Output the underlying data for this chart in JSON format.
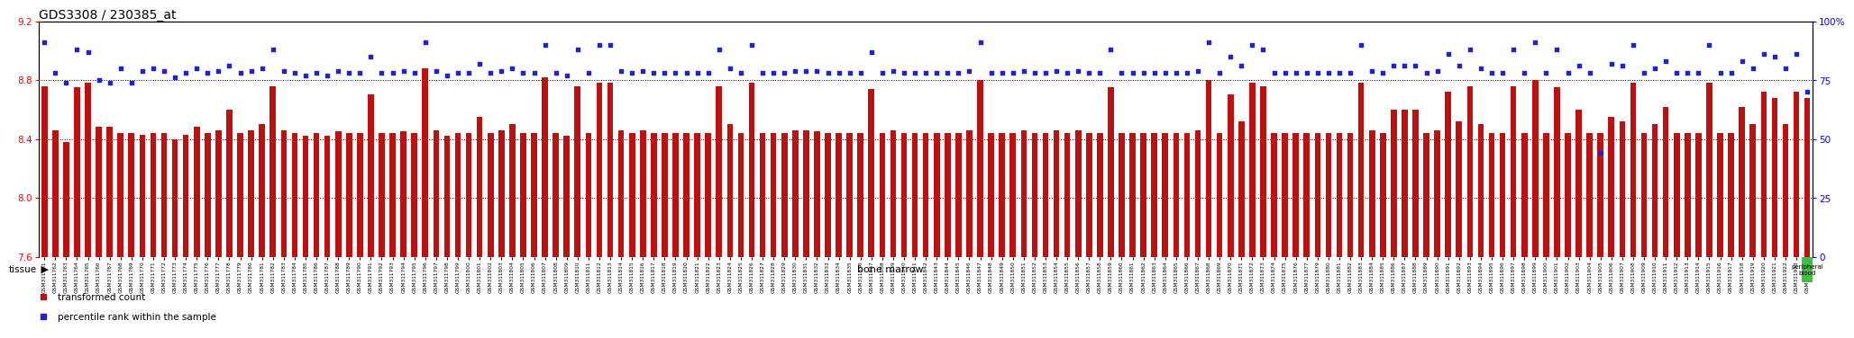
{
  "title": "GDS3308 / 230385_at",
  "ylim_left": [
    7.6,
    9.2
  ],
  "ylim_right": [
    0,
    100
  ],
  "yticks_left": [
    7.6,
    8.0,
    8.4,
    8.8,
    9.2
  ],
  "yticks_right": [
    0,
    25,
    50,
    75,
    100
  ],
  "bar_color": "#bb1111",
  "dot_color": "#2222cc",
  "bar_baseline": 7.6,
  "tissue_color_bone": "#c8f0c8",
  "tissue_color_blood": "#44bb44",
  "tissue_label": "tissue",
  "bone_label": "bone marrow",
  "blood_label": "peripheral\nblood",
  "legend_bar_label": "transformed count",
  "legend_dot_label": "percentile rank within the sample",
  "samples": [
    "GSM311761",
    "GSM311762",
    "GSM311763",
    "GSM311764",
    "GSM311765",
    "GSM311766",
    "GSM311767",
    "GSM311768",
    "GSM311769",
    "GSM311770",
    "GSM311771",
    "GSM311772",
    "GSM311773",
    "GSM311774",
    "GSM311775",
    "GSM311776",
    "GSM311777",
    "GSM311778",
    "GSM311779",
    "GSM311780",
    "GSM311781",
    "GSM311782",
    "GSM311783",
    "GSM311784",
    "GSM311785",
    "GSM311786",
    "GSM311787",
    "GSM311788",
    "GSM311789",
    "GSM311790",
    "GSM311791",
    "GSM311792",
    "GSM311793",
    "GSM311794",
    "GSM311795",
    "GSM311796",
    "GSM311797",
    "GSM311798",
    "GSM311799",
    "GSM311800",
    "GSM311801",
    "GSM311802",
    "GSM311803",
    "GSM311804",
    "GSM311805",
    "GSM311806",
    "GSM311807",
    "GSM311808",
    "GSM311809",
    "GSM311810",
    "GSM311811",
    "GSM311812",
    "GSM311813",
    "GSM311814",
    "GSM311815",
    "GSM311816",
    "GSM311817",
    "GSM311818",
    "GSM311819",
    "GSM311820",
    "GSM311821",
    "GSM311822",
    "GSM311823",
    "GSM311824",
    "GSM311825",
    "GSM311826",
    "GSM311827",
    "GSM311828",
    "GSM311829",
    "GSM311830",
    "GSM311831",
    "GSM311832",
    "GSM311833",
    "GSM311834",
    "GSM311835",
    "GSM311836",
    "GSM311837",
    "GSM311838",
    "GSM311839",
    "GSM311840",
    "GSM311841",
    "GSM311842",
    "GSM311843",
    "GSM311844",
    "GSM311845",
    "GSM311846",
    "GSM311847",
    "GSM311848",
    "GSM311849",
    "GSM311850",
    "GSM311851",
    "GSM311852",
    "GSM311853",
    "GSM311854",
    "GSM311855",
    "GSM311856",
    "GSM311857",
    "GSM311858",
    "GSM311859",
    "GSM311860",
    "GSM311861",
    "GSM311862",
    "GSM311863",
    "GSM311864",
    "GSM311865",
    "GSM311866",
    "GSM311867",
    "GSM311868",
    "GSM311869",
    "GSM311870",
    "GSM311871",
    "GSM311872",
    "GSM311873",
    "GSM311874",
    "GSM311875",
    "GSM311876",
    "GSM311877",
    "GSM311879",
    "GSM311880",
    "GSM311881",
    "GSM311882",
    "GSM311883",
    "GSM311884",
    "GSM311885",
    "GSM311886",
    "GSM311887",
    "GSM311888",
    "GSM311889",
    "GSM311890",
    "GSM311891",
    "GSM311892",
    "GSM311893",
    "GSM311894",
    "GSM311895",
    "GSM311896",
    "GSM311897",
    "GSM311898",
    "GSM311899",
    "GSM311900",
    "GSM311901",
    "GSM311902",
    "GSM311903",
    "GSM311904",
    "GSM311905",
    "GSM311906",
    "GSM311907",
    "GSM311908",
    "GSM311909",
    "GSM311910",
    "GSM311911",
    "GSM311912",
    "GSM311913",
    "GSM311914",
    "GSM311915",
    "GSM311916",
    "GSM311917",
    "GSM311918",
    "GSM311919",
    "GSM311920",
    "GSM311921",
    "GSM311922",
    "GSM311923",
    "GSM311878"
  ],
  "bar_heights": [
    8.76,
    8.46,
    8.38,
    8.75,
    8.78,
    8.48,
    8.48,
    8.44,
    8.44,
    8.43,
    8.44,
    8.44,
    8.4,
    8.43,
    8.48,
    8.44,
    8.46,
    8.6,
    8.44,
    8.46,
    8.5,
    8.76,
    8.46,
    8.44,
    8.42,
    8.44,
    8.42,
    8.45,
    8.44,
    8.44,
    8.7,
    8.44,
    8.44,
    8.45,
    8.44,
    8.88,
    8.46,
    8.42,
    8.44,
    8.44,
    8.55,
    8.44,
    8.46,
    8.5,
    8.44,
    8.44,
    8.82,
    8.44,
    8.42,
    8.76,
    8.44,
    8.78,
    8.78,
    8.46,
    8.44,
    8.46,
    8.44,
    8.44,
    8.44,
    8.44,
    8.44,
    8.44,
    8.76,
    8.5,
    8.44,
    8.78,
    8.44,
    8.44,
    8.44,
    8.46,
    8.46,
    8.45,
    8.44,
    8.44,
    8.44,
    8.44,
    8.74,
    8.44,
    8.46,
    8.44,
    8.44,
    8.44,
    8.44,
    8.44,
    8.44,
    8.46,
    8.8,
    8.44,
    8.44,
    8.44,
    8.46,
    8.44,
    8.44,
    8.46,
    8.44,
    8.46,
    8.44,
    8.44,
    8.75,
    8.44,
    8.44,
    8.44,
    8.44,
    8.44,
    8.44,
    8.44,
    8.46,
    8.8,
    8.44,
    8.7,
    8.52,
    8.78,
    8.76,
    8.44,
    8.44,
    8.44,
    8.44,
    8.44,
    8.44,
    8.44,
    8.44,
    8.78,
    8.46,
    8.44,
    8.6,
    8.6,
    8.6,
    8.44,
    8.46,
    8.72,
    8.52,
    8.76,
    8.5,
    8.44,
    8.44,
    8.76,
    8.44,
    8.8,
    8.44,
    8.75,
    8.44,
    8.6,
    8.44,
    8.44,
    8.55,
    8.52,
    8.78,
    8.44,
    8.5,
    8.62,
    8.44,
    8.44,
    8.44,
    8.78,
    8.44,
    8.44,
    8.62,
    8.5,
    8.72,
    8.68,
    8.5,
    8.72,
    8.68
  ],
  "dot_values": [
    91,
    78,
    74,
    88,
    87,
    75,
    74,
    80,
    74,
    79,
    80,
    79,
    76,
    78,
    80,
    78,
    79,
    81,
    78,
    79,
    80,
    88,
    79,
    78,
    77,
    78,
    77,
    79,
    78,
    78,
    85,
    78,
    78,
    79,
    78,
    91,
    79,
    77,
    78,
    78,
    82,
    78,
    79,
    80,
    78,
    78,
    90,
    78,
    77,
    88,
    78,
    90,
    90,
    79,
    78,
    79,
    78,
    78,
    78,
    78,
    78,
    78,
    88,
    80,
    78,
    90,
    78,
    78,
    78,
    79,
    79,
    79,
    78,
    78,
    78,
    78,
    87,
    78,
    79,
    78,
    78,
    78,
    78,
    78,
    78,
    79,
    91,
    78,
    78,
    78,
    79,
    78,
    78,
    79,
    78,
    79,
    78,
    78,
    88,
    78,
    78,
    78,
    78,
    78,
    78,
    78,
    79,
    91,
    78,
    85,
    81,
    90,
    88,
    78,
    78,
    78,
    78,
    78,
    78,
    78,
    78,
    90,
    79,
    78,
    81,
    81,
    81,
    78,
    79,
    86,
    81,
    88,
    80,
    78,
    78,
    88,
    78,
    91,
    78,
    88,
    78,
    81,
    78,
    44,
    82,
    81,
    90,
    78,
    80,
    83,
    78,
    78,
    78,
    90,
    78,
    78,
    83,
    80,
    86,
    85,
    80,
    86,
    70
  ],
  "background_color": "#ffffff"
}
